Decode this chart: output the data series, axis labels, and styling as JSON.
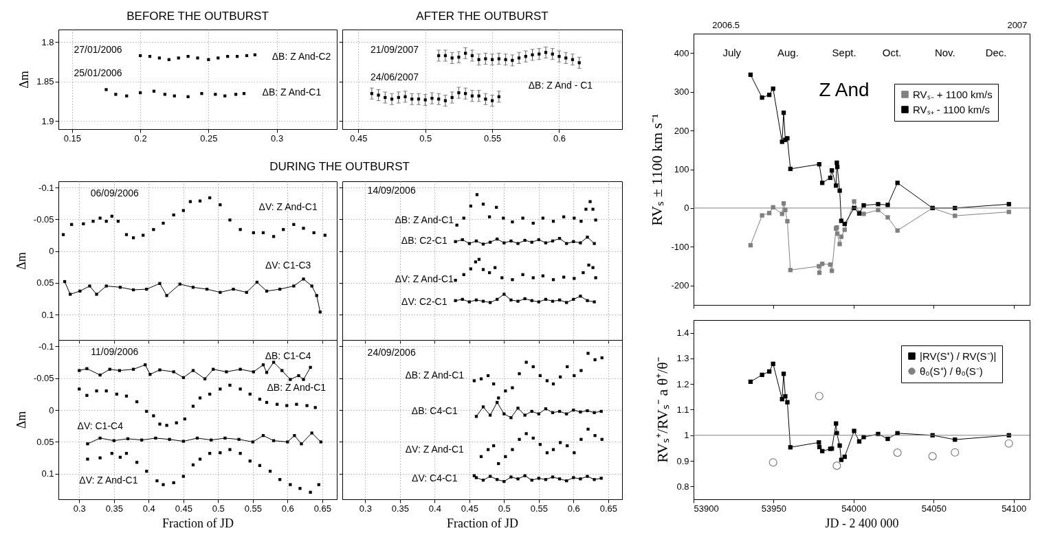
{
  "chart_data": [
    {
      "type": "scatter",
      "title": "BEFORE THE OUTBURST",
      "ylabel": "Δm",
      "marker": "square",
      "grid": true,
      "xlim": [
        0.14,
        0.344
      ],
      "xticks": [
        0.15,
        0.2,
        0.25,
        0.3
      ],
      "ylim": [
        1.91,
        1.784
      ],
      "yticks": [
        1.8,
        1.85,
        1.9
      ],
      "series": [
        {
          "color": "#000000",
          "x": [
            0.2,
            0.207,
            0.214,
            0.221,
            0.228,
            0.235,
            0.242,
            0.25,
            0.257,
            0.264,
            0.271,
            0.278,
            0.284
          ],
          "values": [
            1.817,
            1.818,
            1.82,
            1.822,
            1.82,
            1.818,
            1.82,
            1.822,
            1.82,
            1.818,
            1.818,
            1.817,
            1.816
          ]
        },
        {
          "color": "#000000",
          "x": [
            0.175,
            0.182,
            0.19,
            0.2,
            0.21,
            0.218,
            0.225,
            0.235,
            0.245,
            0.255,
            0.262,
            0.27,
            0.276
          ],
          "values": [
            1.86,
            1.866,
            1.868,
            1.864,
            1.862,
            1.866,
            1.868,
            1.869,
            1.865,
            1.866,
            1.868,
            1.866,
            1.865
          ]
        }
      ],
      "annotations": [
        "27/01/2006",
        "25/01/2006",
        "ΔB: Z And-C2",
        "ΔB: Z And-C1"
      ]
    },
    {
      "type": "scatter",
      "title": "AFTER THE OUTBURST",
      "marker": "square",
      "grid": true,
      "tick_labels": "x",
      "xlim": [
        0.438,
        0.647
      ],
      "xticks": [
        0.45,
        0.5,
        0.55,
        0.6
      ],
      "ylim": [
        1.91,
        1.784
      ],
      "yticks": [
        1.8,
        1.85,
        1.9
      ],
      "series": [
        {
          "color": "#000000",
          "x": [
            0.51,
            0.515,
            0.52,
            0.525,
            0.53,
            0.535,
            0.54,
            0.545,
            0.55,
            0.555,
            0.56,
            0.565,
            0.57,
            0.575,
            0.58,
            0.585,
            0.59,
            0.595,
            0.6,
            0.605,
            0.61,
            0.615
          ],
          "values": [
            1.817,
            1.817,
            1.82,
            1.819,
            1.814,
            1.817,
            1.822,
            1.821,
            1.822,
            1.821,
            1.822,
            1.823,
            1.82,
            1.818,
            1.816,
            1.815,
            1.813,
            1.815,
            1.818,
            1.82,
            1.822,
            1.826
          ],
          "errors": [
            0.007,
            0.007,
            0.007,
            0.007,
            0.007,
            0.007,
            0.007,
            0.007,
            0.007,
            0.007,
            0.007,
            0.007,
            0.007,
            0.007,
            0.007,
            0.007,
            0.007,
            0.007,
            0.007,
            0.007,
            0.007,
            0.007
          ]
        },
        {
          "color": "#000000",
          "x": [
            0.46,
            0.465,
            0.47,
            0.475,
            0.48,
            0.485,
            0.49,
            0.495,
            0.5,
            0.505,
            0.51,
            0.515,
            0.52,
            0.525,
            0.53,
            0.535,
            0.54,
            0.545,
            0.55,
            0.555
          ],
          "values": [
            1.865,
            1.867,
            1.87,
            1.872,
            1.87,
            1.869,
            1.872,
            1.872,
            1.873,
            1.871,
            1.872,
            1.874,
            1.87,
            1.864,
            1.865,
            1.868,
            1.868,
            1.872,
            1.874,
            1.869
          ],
          "errors": [
            0.007,
            0.007,
            0.007,
            0.007,
            0.007,
            0.007,
            0.007,
            0.007,
            0.007,
            0.007,
            0.007,
            0.007,
            0.007,
            0.007,
            0.007,
            0.007,
            0.007,
            0.007,
            0.007,
            0.007
          ]
        }
      ],
      "annotations": [
        "21/09/2007",
        "24/06/2007",
        "ΔB: Z And - C1"
      ]
    },
    {
      "type": "scatter",
      "title": "DURING THE OUTBURST",
      "ylabel": "Δm",
      "marker": "square",
      "grid": true,
      "tick_labels": "y",
      "xlim": [
        0.27,
        0.671
      ],
      "xticks": [
        0.3,
        0.35,
        0.4,
        0.45,
        0.5,
        0.55,
        0.6,
        0.65
      ],
      "ylim": [
        0.14,
        -0.11
      ],
      "yticks": [
        -0.1,
        -0.05,
        0,
        0.05,
        0.1
      ],
      "series": [
        {
          "color": "#000000",
          "x": [
            0.277,
            0.289,
            0.306,
            0.32,
            0.33,
            0.339,
            0.347,
            0.356,
            0.368,
            0.378,
            0.392,
            0.407,
            0.421,
            0.436,
            0.45,
            0.46,
            0.474,
            0.488,
            0.503,
            0.517,
            0.532,
            0.551,
            0.565,
            0.58,
            0.594,
            0.609,
            0.623,
            0.638,
            0.654
          ],
          "values": [
            -0.026,
            -0.042,
            -0.043,
            -0.047,
            -0.052,
            -0.047,
            -0.055,
            -0.047,
            -0.026,
            -0.021,
            -0.025,
            -0.034,
            -0.044,
            -0.057,
            -0.064,
            -0.078,
            -0.079,
            -0.084,
            -0.073,
            -0.049,
            -0.034,
            -0.029,
            -0.029,
            -0.023,
            -0.034,
            -0.042,
            -0.036,
            -0.029,
            -0.025
          ]
        },
        {
          "type": "line",
          "color": "#000000",
          "x": [
            0.279,
            0.287,
            0.301,
            0.315,
            0.325,
            0.339,
            0.359,
            0.378,
            0.397,
            0.416,
            0.426,
            0.445,
            0.464,
            0.484,
            0.503,
            0.522,
            0.541,
            0.556,
            0.57,
            0.589,
            0.609,
            0.623,
            0.635,
            0.642,
            0.647
          ],
          "values": [
            0.048,
            0.068,
            0.063,
            0.055,
            0.068,
            0.055,
            0.057,
            0.061,
            0.06,
            0.051,
            0.07,
            0.052,
            0.057,
            0.06,
            0.065,
            0.06,
            0.065,
            0.049,
            0.063,
            0.06,
            0.055,
            0.044,
            0.055,
            0.07,
            0.096
          ]
        }
      ],
      "annotations": [
        "06/09/2006",
        "ΔV: Z And-C1",
        "ΔV: C1-C3"
      ]
    },
    {
      "type": "scatter",
      "marker": "square",
      "grid": true,
      "tick_labels": false,
      "xlim": [
        0.267,
        0.67
      ],
      "xticks": [
        0.3,
        0.35,
        0.4,
        0.45,
        0.5,
        0.55,
        0.6,
        0.65
      ],
      "ylim": [
        0.14,
        -0.11
      ],
      "yticks": [
        -0.1,
        -0.05,
        0,
        0.05,
        0.1
      ],
      "series": [
        {
          "color": "#000000",
          "x": [
            0.432,
            0.442,
            0.452,
            0.461,
            0.47,
            0.479,
            0.489,
            0.499,
            0.512,
            0.527,
            0.542,
            0.556,
            0.571,
            0.586,
            0.601,
            0.611,
            0.618,
            0.624,
            0.628,
            0.632
          ],
          "values": [
            -0.041,
            -0.052,
            -0.071,
            -0.089,
            -0.074,
            -0.054,
            -0.069,
            -0.052,
            -0.046,
            -0.052,
            -0.044,
            -0.052,
            -0.047,
            -0.054,
            -0.052,
            -0.047,
            -0.066,
            -0.078,
            -0.066,
            -0.049
          ]
        },
        {
          "type": "line",
          "color": "#000000",
          "x": [
            0.43,
            0.44,
            0.45,
            0.46,
            0.47,
            0.48,
            0.49,
            0.5,
            0.51,
            0.52,
            0.53,
            0.54,
            0.55,
            0.56,
            0.57,
            0.58,
            0.59,
            0.6,
            0.61,
            0.62,
            0.63
          ],
          "values": [
            -0.015,
            -0.018,
            -0.012,
            -0.016,
            -0.011,
            -0.014,
            -0.019,
            -0.013,
            -0.016,
            -0.012,
            -0.017,
            -0.014,
            -0.018,
            -0.013,
            -0.016,
            -0.02,
            -0.012,
            -0.015,
            -0.013,
            -0.022,
            -0.012
          ]
        },
        {
          "color": "#000000",
          "x": [
            0.43,
            0.442,
            0.452,
            0.459,
            0.464,
            0.47,
            0.479,
            0.487,
            0.497,
            0.512,
            0.527,
            0.542,
            0.556,
            0.571,
            0.586,
            0.601,
            0.614,
            0.622,
            0.628,
            0.632
          ],
          "values": [
            0.046,
            0.037,
            0.028,
            0.017,
            0.013,
            0.029,
            0.034,
            0.026,
            0.042,
            0.045,
            0.037,
            0.042,
            0.039,
            0.045,
            0.041,
            0.043,
            0.034,
            0.022,
            0.026,
            0.042
          ]
        },
        {
          "type": "line",
          "color": "#000000",
          "x": [
            0.43,
            0.44,
            0.45,
            0.46,
            0.47,
            0.48,
            0.49,
            0.5,
            0.51,
            0.52,
            0.53,
            0.54,
            0.55,
            0.56,
            0.57,
            0.58,
            0.59,
            0.6,
            0.61,
            0.62,
            0.63
          ],
          "values": [
            0.078,
            0.076,
            0.08,
            0.077,
            0.079,
            0.081,
            0.076,
            0.068,
            0.077,
            0.079,
            0.075,
            0.078,
            0.08,
            0.076,
            0.079,
            0.077,
            0.081,
            0.076,
            0.071,
            0.078,
            0.08
          ]
        }
      ],
      "annotations": [
        "14/09/2006",
        "ΔB: Z And-C1",
        "ΔB: C2-C1",
        "ΔV: Z And-C1",
        "ΔV: C2-C1"
      ]
    },
    {
      "type": "scatter",
      "xlabel": "Fraction of JD",
      "ylabel": "Δm",
      "marker": "square",
      "grid": true,
      "xlim": [
        0.27,
        0.671
      ],
      "xticks": [
        0.3,
        0.35,
        0.4,
        0.45,
        0.5,
        0.55,
        0.6,
        0.65
      ],
      "ylim": [
        0.14,
        -0.11
      ],
      "yticks": [
        -0.1,
        -0.05,
        0,
        0.05,
        0.1
      ],
      "series": [
        {
          "type": "line",
          "color": "#000000",
          "x": [
            0.3,
            0.311,
            0.33,
            0.344,
            0.358,
            0.378,
            0.395,
            0.402,
            0.416,
            0.436,
            0.45,
            0.464,
            0.481,
            0.493,
            0.512,
            0.532,
            0.551,
            0.565,
            0.57,
            0.58,
            0.592,
            0.604,
            0.616,
            0.623,
            0.633
          ],
          "values": [
            -0.062,
            -0.065,
            -0.055,
            -0.064,
            -0.062,
            -0.064,
            -0.071,
            -0.056,
            -0.063,
            -0.06,
            -0.051,
            -0.062,
            -0.049,
            -0.064,
            -0.06,
            -0.064,
            -0.06,
            -0.071,
            -0.059,
            -0.075,
            -0.062,
            -0.048,
            -0.054,
            -0.048,
            -0.067
          ]
        },
        {
          "color": "#000000",
          "x": [
            0.3,
            0.311,
            0.325,
            0.339,
            0.354,
            0.368,
            0.383,
            0.397,
            0.407,
            0.416,
            0.426,
            0.44,
            0.452,
            0.464,
            0.474,
            0.488,
            0.503,
            0.517,
            0.532,
            0.546,
            0.56,
            0.57,
            0.585,
            0.599,
            0.613,
            0.628,
            0.64
          ],
          "values": [
            -0.033,
            -0.023,
            -0.03,
            -0.03,
            -0.025,
            -0.022,
            -0.013,
            0.002,
            0.009,
            0.022,
            0.024,
            0.02,
            0.014,
            -0.006,
            -0.019,
            -0.025,
            -0.033,
            -0.039,
            -0.033,
            -0.025,
            -0.017,
            -0.012,
            -0.009,
            -0.007,
            -0.009,
            -0.007,
            -0.004
          ]
        },
        {
          "type": "line",
          "color": "#000000",
          "x": [
            0.312,
            0.33,
            0.35,
            0.37,
            0.39,
            0.41,
            0.43,
            0.45,
            0.47,
            0.49,
            0.51,
            0.53,
            0.55,
            0.565,
            0.58,
            0.6,
            0.61,
            0.62,
            0.635,
            0.648
          ],
          "values": [
            0.053,
            0.044,
            0.048,
            0.045,
            0.047,
            0.044,
            0.046,
            0.049,
            0.044,
            0.047,
            0.044,
            0.046,
            0.05,
            0.04,
            0.048,
            0.05,
            0.04,
            0.053,
            0.036,
            0.05
          ]
        },
        {
          "color": "#000000",
          "x": [
            0.312,
            0.33,
            0.347,
            0.359,
            0.368,
            0.383,
            0.397,
            0.412,
            0.421,
            0.436,
            0.45,
            0.464,
            0.474,
            0.488,
            0.503,
            0.517,
            0.532,
            0.546,
            0.56,
            0.575,
            0.589,
            0.604,
            0.618,
            0.633,
            0.645
          ],
          "values": [
            0.077,
            0.075,
            0.068,
            0.074,
            0.068,
            0.082,
            0.096,
            0.111,
            0.117,
            0.114,
            0.104,
            0.086,
            0.077,
            0.068,
            0.067,
            0.062,
            0.068,
            0.08,
            0.087,
            0.096,
            0.109,
            0.117,
            0.123,
            0.129,
            0.117
          ]
        }
      ],
      "annotations": [
        "11/09/2006",
        "ΔB: C1-C4",
        "ΔB: Z And-C1",
        "ΔV: C1-C4",
        "ΔV: Z And-C1"
      ]
    },
    {
      "type": "scatter",
      "xlabel": "Fraction of JD",
      "marker": "square",
      "grid": true,
      "tick_labels": "x",
      "xlim": [
        0.267,
        0.67
      ],
      "xticks": [
        0.3,
        0.35,
        0.4,
        0.45,
        0.5,
        0.55,
        0.6,
        0.65
      ],
      "ylim": [
        0.14,
        -0.11
      ],
      "yticks": [
        -0.1,
        -0.05,
        0,
        0.05,
        0.1
      ],
      "series": [
        {
          "color": "#000000",
          "x": [
            0.457,
            0.467,
            0.477,
            0.485,
            0.492,
            0.502,
            0.512,
            0.522,
            0.532,
            0.542,
            0.552,
            0.562,
            0.571,
            0.581,
            0.591,
            0.601,
            0.611,
            0.621,
            0.631,
            0.641
          ],
          "values": [
            -0.046,
            -0.049,
            -0.054,
            -0.041,
            -0.019,
            -0.03,
            -0.035,
            -0.057,
            -0.075,
            -0.068,
            -0.054,
            -0.046,
            -0.041,
            -0.052,
            -0.068,
            -0.054,
            -0.062,
            -0.089,
            -0.079,
            -0.082
          ]
        },
        {
          "type": "line",
          "color": "#000000",
          "x": [
            0.46,
            0.47,
            0.48,
            0.49,
            0.5,
            0.51,
            0.52,
            0.53,
            0.54,
            0.55,
            0.56,
            0.57,
            0.58,
            0.59,
            0.6,
            0.61,
            0.62,
            0.63,
            0.64
          ],
          "values": [
            0.01,
            -0.005,
            0.008,
            -0.012,
            0.006,
            0.012,
            -0.003,
            0.008,
            0.002,
            0.006,
            -0.002,
            0.004,
            0.002,
            0.006,
            0.0,
            0.003,
            0.001,
            0.004,
            0.002
          ]
        },
        {
          "color": "#000000",
          "x": [
            0.457,
            0.467,
            0.477,
            0.485,
            0.492,
            0.502,
            0.512,
            0.522,
            0.532,
            0.542,
            0.552,
            0.562,
            0.571,
            0.581,
            0.591,
            0.601,
            0.611,
            0.621,
            0.631,
            0.641
          ],
          "values": [
            0.103,
            0.073,
            0.062,
            0.056,
            0.084,
            0.073,
            0.062,
            0.046,
            0.037,
            0.044,
            0.054,
            0.067,
            0.062,
            0.051,
            0.056,
            0.067,
            0.046,
            0.03,
            0.04,
            0.046
          ]
        },
        {
          "type": "line",
          "color": "#000000",
          "x": [
            0.46,
            0.47,
            0.48,
            0.49,
            0.5,
            0.51,
            0.52,
            0.53,
            0.54,
            0.55,
            0.56,
            0.57,
            0.58,
            0.59,
            0.6,
            0.61,
            0.62,
            0.63,
            0.64
          ],
          "values": [
            0.106,
            0.11,
            0.104,
            0.109,
            0.112,
            0.105,
            0.108,
            0.103,
            0.11,
            0.107,
            0.109,
            0.105,
            0.108,
            0.111,
            0.106,
            0.108,
            0.104,
            0.109,
            0.107
          ]
        }
      ],
      "annotations": [
        "24/09/2006",
        "ΔB: Z And-C1",
        "ΔB: C4-C1",
        "ΔV: Z And-C1",
        "ΔV: C4-C1"
      ]
    },
    {
      "type": "line",
      "ylabel": "RVₛ ± 1100 km s⁻¹",
      "marker": "square",
      "legend": "top right",
      "tick_labels": "y",
      "xlim": [
        53900,
        54110
      ],
      "xticks": [
        53900,
        53950,
        54000,
        54050,
        54100
      ],
      "x2lim": [
        2006.445,
        2007.022
      ],
      "x2ticks": [
        2006.5,
        2007
      ],
      "ylim": [
        -250,
        450
      ],
      "yticks": [
        -200,
        -100,
        0,
        100,
        200,
        300,
        400
      ],
      "series": [
        {
          "name": "RVₛ₋ + 1100 km/s",
          "color": "#808080",
          "x": [
            53935.6,
            53942.8,
            53947.3,
            53949.7,
            53955.3,
            53956.3,
            53957.3,
            53958.6,
            53960.5,
            53978.3,
            53978.6,
            53980.4,
            53985.4,
            53986.4,
            53989.0,
            53989.5,
            53989.8,
            53991.3,
            53992.3,
            53994.4,
            54000.3,
            54003.5,
            54006.3,
            54015.3,
            54021.3,
            54027.4,
            54049.3,
            54063.3,
            54097.0
          ],
          "values": [
            -96,
            -19,
            -13,
            2,
            -15,
            12,
            -5,
            -34,
            -160,
            -150,
            -167,
            -144,
            -146,
            -162,
            -53,
            -50,
            -66,
            -93,
            -74,
            -56,
            17,
            -12,
            -15,
            -5,
            -24,
            -58,
            0,
            -20,
            -10
          ]
        },
        {
          "name": "RVₛ₊ - 1100 km/s",
          "color": "#000000",
          "x": [
            53935.6,
            53942.8,
            53947.3,
            53949.7,
            53955.3,
            53956.3,
            53957.3,
            53958.6,
            53960.5,
            53978.5,
            53980.4,
            53985.4,
            53986.4,
            53989.0,
            53989.5,
            53989.8,
            53991.3,
            53992.3,
            53994.4,
            54000.3,
            54003.5,
            54006.3,
            54015.3,
            54021.3,
            54027.4,
            54049.3,
            54063.3,
            54097.0
          ],
          "values": [
            344,
            285,
            292,
            308,
            171,
            246,
            176,
            180,
            101,
            113,
            65,
            78,
            97,
            58,
            117,
            106,
            45,
            -33,
            -41,
            0,
            -14,
            7,
            10,
            8,
            65,
            0,
            0,
            10
          ]
        }
      ],
      "ref_lines": [
        {
          "axis": "y",
          "value": 0,
          "color": "#808080"
        }
      ],
      "annotations": [
        "July",
        "Aug.",
        "Sept.",
        "Oct.",
        "Nov.",
        "Dec.",
        "Z And"
      ]
    },
    {
      "type": "line",
      "xlabel": "JD - 2 400 000",
      "ylabel": "RVₛ⁺/RVₛ⁻  a  θ⁺/θ⁻",
      "marker": "square",
      "legend": "top right",
      "xlim": [
        53900,
        54110
      ],
      "xticks": [
        53900,
        53950,
        54000,
        54050,
        54100
      ],
      "ylim": [
        0.75,
        1.45
      ],
      "yticks": [
        0.8,
        0.9,
        1,
        1.1,
        1.2,
        1.3,
        1.4
      ],
      "series": [
        {
          "name": "|RV(S⁺) / RV(S⁻)|",
          "color": "#000000",
          "x": [
            53935.6,
            53942.8,
            53947.3,
            53949.7,
            53955.3,
            53956.3,
            53957.3,
            53958.6,
            53960.5,
            53978.3,
            53978.6,
            53980.4,
            53985.4,
            53986.4,
            53989.0,
            53989.5,
            53991.3,
            53992.3,
            53994.4,
            54000.3,
            54003.5,
            54006.3,
            54015.3,
            54021.3,
            54027.4,
            54049.3,
            54063.3,
            54097.0
          ],
          "values": [
            1.209,
            1.236,
            1.249,
            1.279,
            1.141,
            1.24,
            1.152,
            1.129,
            0.953,
            0.972,
            0.954,
            0.938,
            0.947,
            0.948,
            1.046,
            1.008,
            0.96,
            0.904,
            0.916,
            1.017,
            0.976,
            0.993,
            1.005,
            0.986,
            1.008,
            1.0,
            0.983,
            1.0
          ]
        },
        {
          "name": "θ₀(S⁺) / θ₀(S⁻)",
          "type": "scatter",
          "marker": "circle",
          "color": "#808080",
          "x": [
            53949.7,
            53978.5,
            53989.5,
            54027.4,
            54049.3,
            54063.3,
            54097.0
          ],
          "values": [
            0.894,
            1.153,
            0.881,
            0.932,
            0.918,
            0.933,
            0.968
          ]
        }
      ],
      "ref_lines": [
        {
          "axis": "y",
          "value": 1,
          "color": "#808080"
        }
      ]
    }
  ]
}
